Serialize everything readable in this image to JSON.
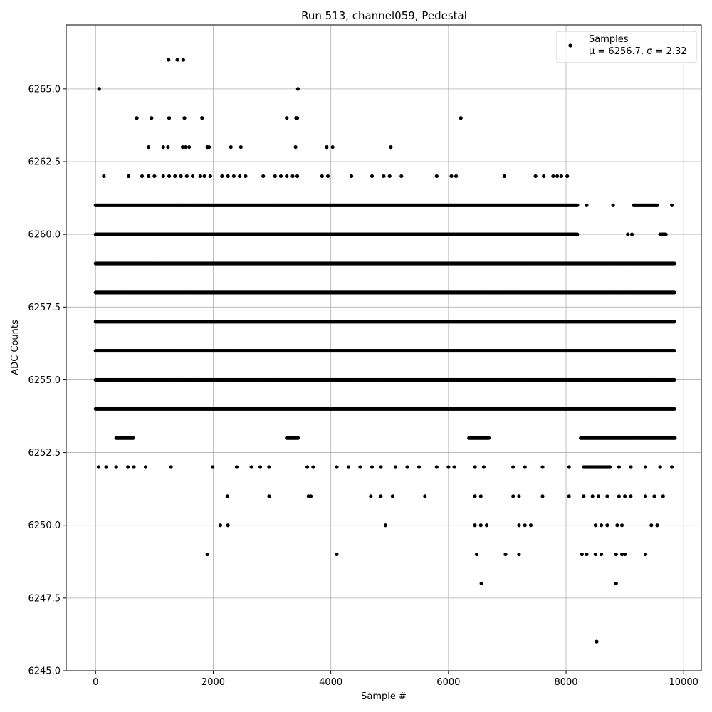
{
  "chart_data": {
    "type": "scatter",
    "title": "Run 513, channel059, Pedestal",
    "xlabel": "Sample #",
    "ylabel": "ADC Counts",
    "xlim": [
      -500,
      10300
    ],
    "ylim": [
      6245.0,
      6267.2
    ],
    "x_ticks": [
      0,
      2000,
      4000,
      6000,
      8000,
      10000
    ],
    "x_tick_labels": [
      "0",
      "2000",
      "4000",
      "6000",
      "8000",
      "10000"
    ],
    "y_ticks": [
      6245.0,
      6247.5,
      6250.0,
      6252.5,
      6255.0,
      6257.5,
      6260.0,
      6262.5,
      6265.0
    ],
    "y_tick_labels": [
      "6245.0",
      "6247.5",
      "6250.0",
      "6252.5",
      "6255.0",
      "6257.5",
      "6260.0",
      "6262.5",
      "6265.0"
    ],
    "grid": true,
    "legend": {
      "placement": "top-right",
      "lines": [
        "Samples",
        "μ = 6256.7, σ = 2.32"
      ]
    },
    "series": [
      {
        "name": "Samples",
        "color": "#000000",
        "dense_rows": [
          {
            "y": 6261,
            "ranges": [
              [
                0,
                8200
              ],
              [
                9150,
                9550
              ]
            ]
          },
          {
            "y": 6260,
            "ranges": [
              [
                0,
                8200
              ],
              [
                9600,
                9700
              ]
            ]
          },
          {
            "y": 6259,
            "ranges": [
              [
                0,
                9850
              ]
            ]
          },
          {
            "y": 6258,
            "ranges": [
              [
                0,
                9850
              ]
            ]
          },
          {
            "y": 6257,
            "ranges": [
              [
                0,
                9850
              ]
            ]
          },
          {
            "y": 6256,
            "ranges": [
              [
                0,
                9850
              ]
            ]
          },
          {
            "y": 6255,
            "ranges": [
              [
                0,
                9850
              ]
            ]
          },
          {
            "y": 6254,
            "ranges": [
              [
                0,
                9850
              ]
            ]
          },
          {
            "y": 6253,
            "ranges": [
              [
                350,
                650
              ],
              [
                3250,
                3450
              ],
              [
                6350,
                6700
              ],
              [
                8250,
                9850
              ]
            ]
          },
          {
            "y": 6252,
            "ranges": [
              [
                8300,
                8750
              ]
            ]
          }
        ],
        "points": [
          [
            60,
            6265
          ],
          [
            3440,
            6265
          ],
          [
            1240,
            6266
          ],
          [
            1390,
            6266
          ],
          [
            1490,
            6266
          ],
          [
            700,
            6264
          ],
          [
            950,
            6264
          ],
          [
            1250,
            6264
          ],
          [
            1510,
            6264
          ],
          [
            1810,
            6264
          ],
          [
            3250,
            6264
          ],
          [
            3410,
            6264
          ],
          [
            3430,
            6264
          ],
          [
            6210,
            6264
          ],
          [
            900,
            6263
          ],
          [
            1150,
            6263
          ],
          [
            1230,
            6263
          ],
          [
            1480,
            6263
          ],
          [
            1530,
            6263
          ],
          [
            1590,
            6263
          ],
          [
            1900,
            6263
          ],
          [
            1930,
            6263
          ],
          [
            2300,
            6263
          ],
          [
            2470,
            6263
          ],
          [
            3400,
            6263
          ],
          [
            3930,
            6263
          ],
          [
            4030,
            6263
          ],
          [
            5020,
            6263
          ],
          [
            140,
            6262
          ],
          [
            560,
            6262
          ],
          [
            790,
            6262
          ],
          [
            900,
            6262
          ],
          [
            1000,
            6262
          ],
          [
            1150,
            6262
          ],
          [
            1250,
            6262
          ],
          [
            1350,
            6262
          ],
          [
            1450,
            6262
          ],
          [
            1550,
            6262
          ],
          [
            1650,
            6262
          ],
          [
            1780,
            6262
          ],
          [
            1850,
            6262
          ],
          [
            1950,
            6262
          ],
          [
            2150,
            6262
          ],
          [
            2250,
            6262
          ],
          [
            2350,
            6262
          ],
          [
            2450,
            6262
          ],
          [
            2550,
            6262
          ],
          [
            2850,
            6262
          ],
          [
            3050,
            6262
          ],
          [
            3150,
            6262
          ],
          [
            3250,
            6262
          ],
          [
            3350,
            6262
          ],
          [
            3430,
            6262
          ],
          [
            3850,
            6262
          ],
          [
            3950,
            6262
          ],
          [
            4350,
            6262
          ],
          [
            4700,
            6262
          ],
          [
            4900,
            6262
          ],
          [
            5000,
            6262
          ],
          [
            5200,
            6262
          ],
          [
            5800,
            6262
          ],
          [
            6050,
            6262
          ],
          [
            6130,
            6262
          ],
          [
            6950,
            6262
          ],
          [
            7480,
            6262
          ],
          [
            7620,
            6262
          ],
          [
            7780,
            6262
          ],
          [
            7850,
            6262
          ],
          [
            7920,
            6262
          ],
          [
            8020,
            6262
          ],
          [
            8350,
            6261
          ],
          [
            8800,
            6261
          ],
          [
            9800,
            6261
          ],
          [
            9050,
            6260
          ],
          [
            9120,
            6260
          ],
          [
            8650,
            6259
          ],
          [
            8720,
            6259
          ],
          [
            8950,
            6259
          ],
          [
            9050,
            6259
          ],
          [
            9200,
            6259
          ],
          [
            8700,
            6258
          ],
          [
            9250,
            6258
          ],
          [
            50,
            6252
          ],
          [
            180,
            6252
          ],
          [
            350,
            6252
          ],
          [
            550,
            6252
          ],
          [
            650,
            6252
          ],
          [
            850,
            6252
          ],
          [
            1280,
            6252
          ],
          [
            1990,
            6252
          ],
          [
            2400,
            6252
          ],
          [
            2650,
            6252
          ],
          [
            2800,
            6252
          ],
          [
            2950,
            6252
          ],
          [
            3600,
            6252
          ],
          [
            3700,
            6252
          ],
          [
            4100,
            6252
          ],
          [
            4300,
            6252
          ],
          [
            4500,
            6252
          ],
          [
            4700,
            6252
          ],
          [
            4850,
            6252
          ],
          [
            5100,
            6252
          ],
          [
            5300,
            6252
          ],
          [
            5500,
            6252
          ],
          [
            5800,
            6252
          ],
          [
            6000,
            6252
          ],
          [
            6100,
            6252
          ],
          [
            6450,
            6252
          ],
          [
            6600,
            6252
          ],
          [
            7100,
            6252
          ],
          [
            7300,
            6252
          ],
          [
            7600,
            6252
          ],
          [
            8050,
            6252
          ],
          [
            8900,
            6252
          ],
          [
            9100,
            6252
          ],
          [
            9350,
            6252
          ],
          [
            9600,
            6252
          ],
          [
            9800,
            6252
          ],
          [
            2240,
            6251
          ],
          [
            2950,
            6251
          ],
          [
            3620,
            6251
          ],
          [
            3660,
            6251
          ],
          [
            4680,
            6251
          ],
          [
            4850,
            6251
          ],
          [
            5050,
            6251
          ],
          [
            5600,
            6251
          ],
          [
            6450,
            6251
          ],
          [
            6550,
            6251
          ],
          [
            7100,
            6251
          ],
          [
            7200,
            6251
          ],
          [
            7600,
            6251
          ],
          [
            8050,
            6251
          ],
          [
            8300,
            6251
          ],
          [
            8450,
            6251
          ],
          [
            8550,
            6251
          ],
          [
            8700,
            6251
          ],
          [
            8900,
            6251
          ],
          [
            9000,
            6251
          ],
          [
            9100,
            6251
          ],
          [
            9350,
            6251
          ],
          [
            9500,
            6251
          ],
          [
            9650,
            6251
          ],
          [
            2120,
            6250
          ],
          [
            2250,
            6250
          ],
          [
            4930,
            6250
          ],
          [
            6450,
            6250
          ],
          [
            6550,
            6250
          ],
          [
            6650,
            6250
          ],
          [
            7200,
            6250
          ],
          [
            7300,
            6250
          ],
          [
            7400,
            6250
          ],
          [
            8500,
            6250
          ],
          [
            8600,
            6250
          ],
          [
            8700,
            6250
          ],
          [
            8870,
            6250
          ],
          [
            8950,
            6250
          ],
          [
            9450,
            6250
          ],
          [
            9550,
            6250
          ],
          [
            1900,
            6249
          ],
          [
            4100,
            6249
          ],
          [
            6480,
            6249
          ],
          [
            6970,
            6249
          ],
          [
            7200,
            6249
          ],
          [
            8270,
            6249
          ],
          [
            8350,
            6249
          ],
          [
            8500,
            6249
          ],
          [
            8600,
            6249
          ],
          [
            8850,
            6249
          ],
          [
            8950,
            6249
          ],
          [
            9000,
            6249
          ],
          [
            9350,
            6249
          ],
          [
            6560,
            6248
          ],
          [
            8850,
            6248
          ],
          [
            8520,
            6246
          ]
        ]
      }
    ]
  }
}
